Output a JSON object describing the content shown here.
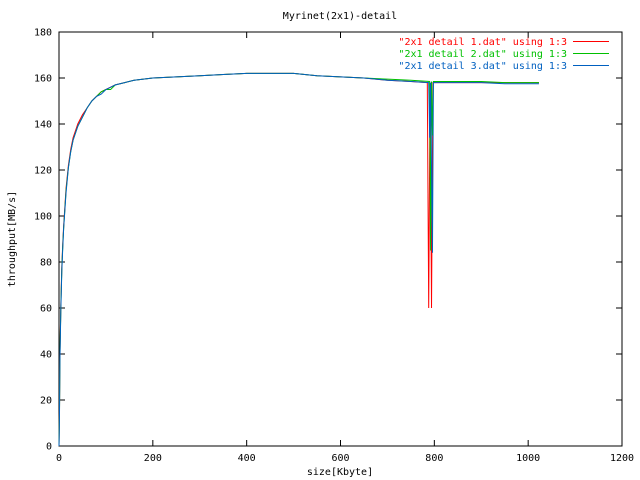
{
  "chart_data": {
    "type": "line",
    "title": "Myrinet(2x1)-detail",
    "xlabel": "size[Kbyte]",
    "ylabel": "throughput[MB/s]",
    "xlim": [
      0,
      1200
    ],
    "ylim": [
      0,
      180
    ],
    "xticks": [
      "0",
      "200",
      "400",
      "600",
      "800",
      "1000",
      "1200"
    ],
    "yticks": [
      "0",
      "20",
      "40",
      "60",
      "80",
      "100",
      "120",
      "140",
      "160",
      "180"
    ],
    "grid": false,
    "legend_position": "top-right",
    "series": [
      {
        "name": "\"2x1 detail 1.dat\" using 1:3",
        "color": "#ff0000",
        "x": [
          0,
          1,
          2,
          4,
          6,
          8,
          10,
          15,
          20,
          25,
          30,
          40,
          50,
          60,
          70,
          80,
          90,
          100,
          110,
          120,
          140,
          160,
          180,
          200,
          250,
          300,
          350,
          400,
          450,
          500,
          550,
          600,
          650,
          700,
          750,
          785,
          788,
          791,
          794,
          797,
          800,
          850,
          900,
          950,
          1000,
          1023
        ],
        "y": [
          0,
          15,
          40,
          62,
          78,
          88,
          96,
          112,
          122,
          129,
          134,
          140,
          144,
          147,
          150,
          152,
          154,
          155,
          156,
          157,
          158,
          159,
          159.5,
          160,
          160.5,
          161,
          161.5,
          162,
          162,
          162,
          161,
          160.5,
          160,
          159,
          158.5,
          158,
          60,
          158,
          60,
          158,
          158,
          158,
          158,
          158,
          158,
          158
        ]
      },
      {
        "name": "\"2x1 detail 2.dat\" using 1:3",
        "color": "#00c000",
        "x": [
          0,
          1,
          2,
          4,
          6,
          8,
          10,
          15,
          20,
          25,
          30,
          40,
          50,
          60,
          70,
          80,
          90,
          100,
          110,
          120,
          140,
          160,
          180,
          200,
          250,
          300,
          350,
          400,
          450,
          500,
          550,
          600,
          650,
          700,
          750,
          790,
          792,
          794,
          796,
          798,
          800,
          850,
          900,
          950,
          1000,
          1023
        ],
        "y": [
          0,
          14,
          39,
          61,
          77,
          87,
          95,
          111,
          121,
          128,
          133,
          139,
          143,
          147,
          150,
          152,
          154,
          155,
          155,
          157,
          158,
          159,
          159.5,
          160,
          160.5,
          161,
          161.5,
          162,
          162,
          162,
          161,
          160.5,
          160,
          159.5,
          159,
          158.5,
          85,
          158.5,
          135,
          158.5,
          158.5,
          158.5,
          158.5,
          158,
          158,
          158
        ]
      },
      {
        "name": "\"2x1 detail 3.dat\" using 1:3",
        "color": "#0060c0",
        "x": [
          0,
          1,
          2,
          4,
          6,
          8,
          10,
          15,
          20,
          25,
          30,
          40,
          50,
          60,
          70,
          80,
          90,
          100,
          110,
          120,
          140,
          160,
          180,
          200,
          250,
          300,
          350,
          400,
          450,
          500,
          550,
          600,
          650,
          700,
          750,
          788,
          790,
          792,
          796,
          798,
          800,
          850,
          900,
          950,
          1000,
          1023
        ],
        "y": [
          0,
          13,
          38,
          60,
          76,
          86,
          95,
          110,
          121,
          128,
          133,
          139,
          143,
          147,
          150,
          152,
          153,
          155,
          156,
          157,
          158,
          159,
          159.5,
          160,
          160.5,
          161,
          161.5,
          162,
          162,
          162,
          161,
          160.5,
          160,
          159,
          158.5,
          158,
          134,
          158,
          84,
          158,
          158,
          158,
          158,
          157.5,
          157.5,
          157.5
        ]
      }
    ]
  }
}
